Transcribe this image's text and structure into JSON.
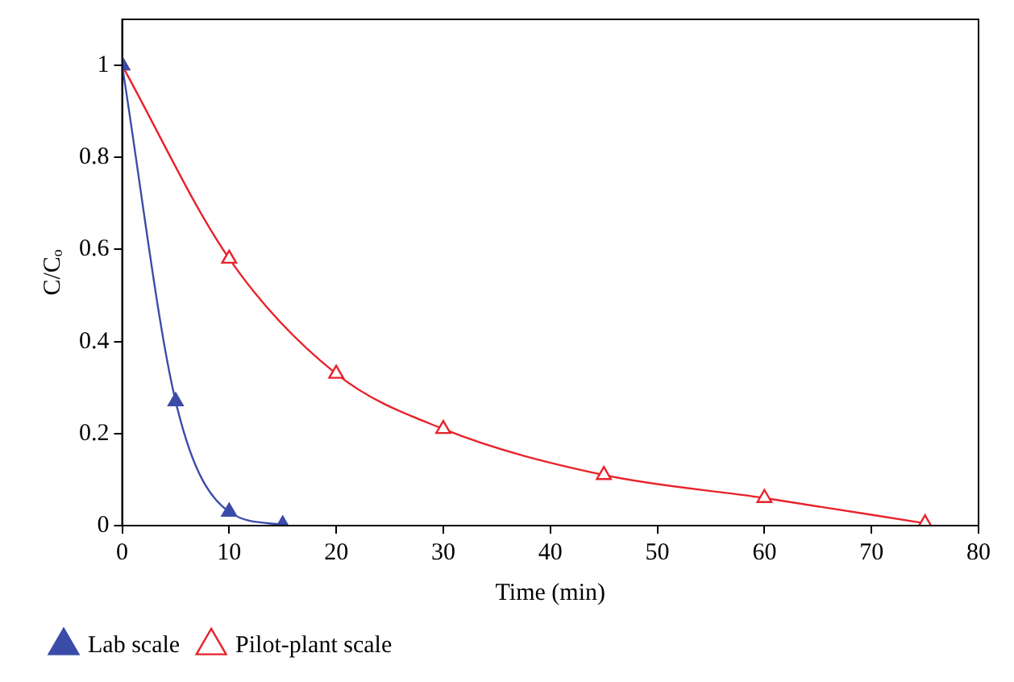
{
  "chart_data": {
    "type": "line",
    "xlabel": "Time (min)",
    "ylabel": "C/Cₒ",
    "xlim": [
      0,
      80
    ],
    "xticks": [
      0,
      10,
      20,
      30,
      40,
      50,
      60,
      70,
      80
    ],
    "ylim": [
      0,
      1.1
    ],
    "yticks": [
      0,
      0.2,
      0.4,
      0.6,
      0.8,
      1
    ],
    "grid": false,
    "legend": "bottom left",
    "marker": "triangle",
    "line_style": "solid",
    "series": [
      {
        "name": "Pilot-plant scale",
        "color": "#e8222a",
        "x": [
          0,
          10,
          20,
          30,
          45,
          60,
          75
        ],
        "values": [
          1,
          0.58,
          0.33,
          0.21,
          0.11,
          0.06,
          0.005
        ]
      },
      {
        "name": "Lab scale",
        "color": "#3b4ca8",
        "x": [
          0,
          5,
          10,
          15
        ],
        "values": [
          1,
          0.27,
          0.03,
          0.002
        ]
      }
    ]
  }
}
